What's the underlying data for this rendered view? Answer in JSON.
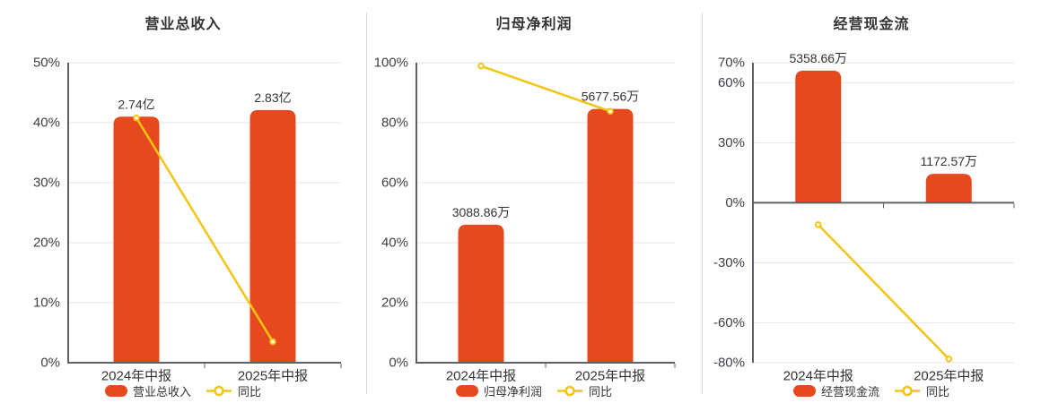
{
  "colors": {
    "bar": "#e5491d",
    "line": "#f3c513",
    "grid": "#e2e4ec",
    "axis": "#5c6068",
    "divider": "#d8d8d8",
    "title_text": "#333333",
    "tick_text": "#3d4045",
    "label_text": "#333333"
  },
  "chart_data": [
    {
      "type": "bar+line",
      "title": "营业总收入",
      "categories": [
        "2024年中报",
        "2025年中报"
      ],
      "bar_series": {
        "name": "营业总收入",
        "value_labels": [
          "2.74亿",
          "2.83亿"
        ],
        "plotted_top_pct": [
          41.0,
          42.1
        ]
      },
      "line_series": {
        "name": "同比",
        "values_pct": [
          40.8,
          3.5
        ]
      },
      "y_axis": {
        "min": 0,
        "max": 50,
        "ticks": [
          0,
          10,
          20,
          30,
          40,
          50
        ],
        "unit": "%",
        "grid": true
      },
      "legend": [
        "营业总收入",
        "同比"
      ],
      "legend_position": "bottom"
    },
    {
      "type": "bar+line",
      "title": "归母净利润",
      "categories": [
        "2024年中报",
        "2025年中报"
      ],
      "bar_series": {
        "name": "归母净利润",
        "value_labels": [
          "3088.86万",
          "5677.56万"
        ],
        "plotted_top_pct": [
          46.0,
          84.6
        ]
      },
      "line_series": {
        "name": "同比",
        "values_pct": [
          98.9,
          83.8
        ]
      },
      "y_axis": {
        "min": 0,
        "max": 100,
        "ticks": [
          0,
          20,
          40,
          60,
          80,
          100
        ],
        "unit": "%",
        "grid": true
      },
      "legend": [
        "归母净利润",
        "同比"
      ],
      "legend_position": "bottom"
    },
    {
      "type": "bar+line",
      "title": "经营现金流",
      "categories": [
        "2024年中报",
        "2025年中报"
      ],
      "bar_series": {
        "name": "经营现金流",
        "value_labels": [
          "5358.66万",
          "1172.57万"
        ],
        "plotted_top_pct": [
          66.0,
          14.4
        ]
      },
      "line_series": {
        "name": "同比",
        "values_pct": [
          -11.0,
          -78.1
        ]
      },
      "y_axis": {
        "min": -80,
        "max": 70,
        "ticks": [
          -80,
          -60,
          -30,
          0,
          30,
          60,
          70
        ],
        "unit": "%",
        "grid": true
      },
      "legend": [
        "经营现金流",
        "同比"
      ],
      "legend_position": "bottom"
    }
  ]
}
